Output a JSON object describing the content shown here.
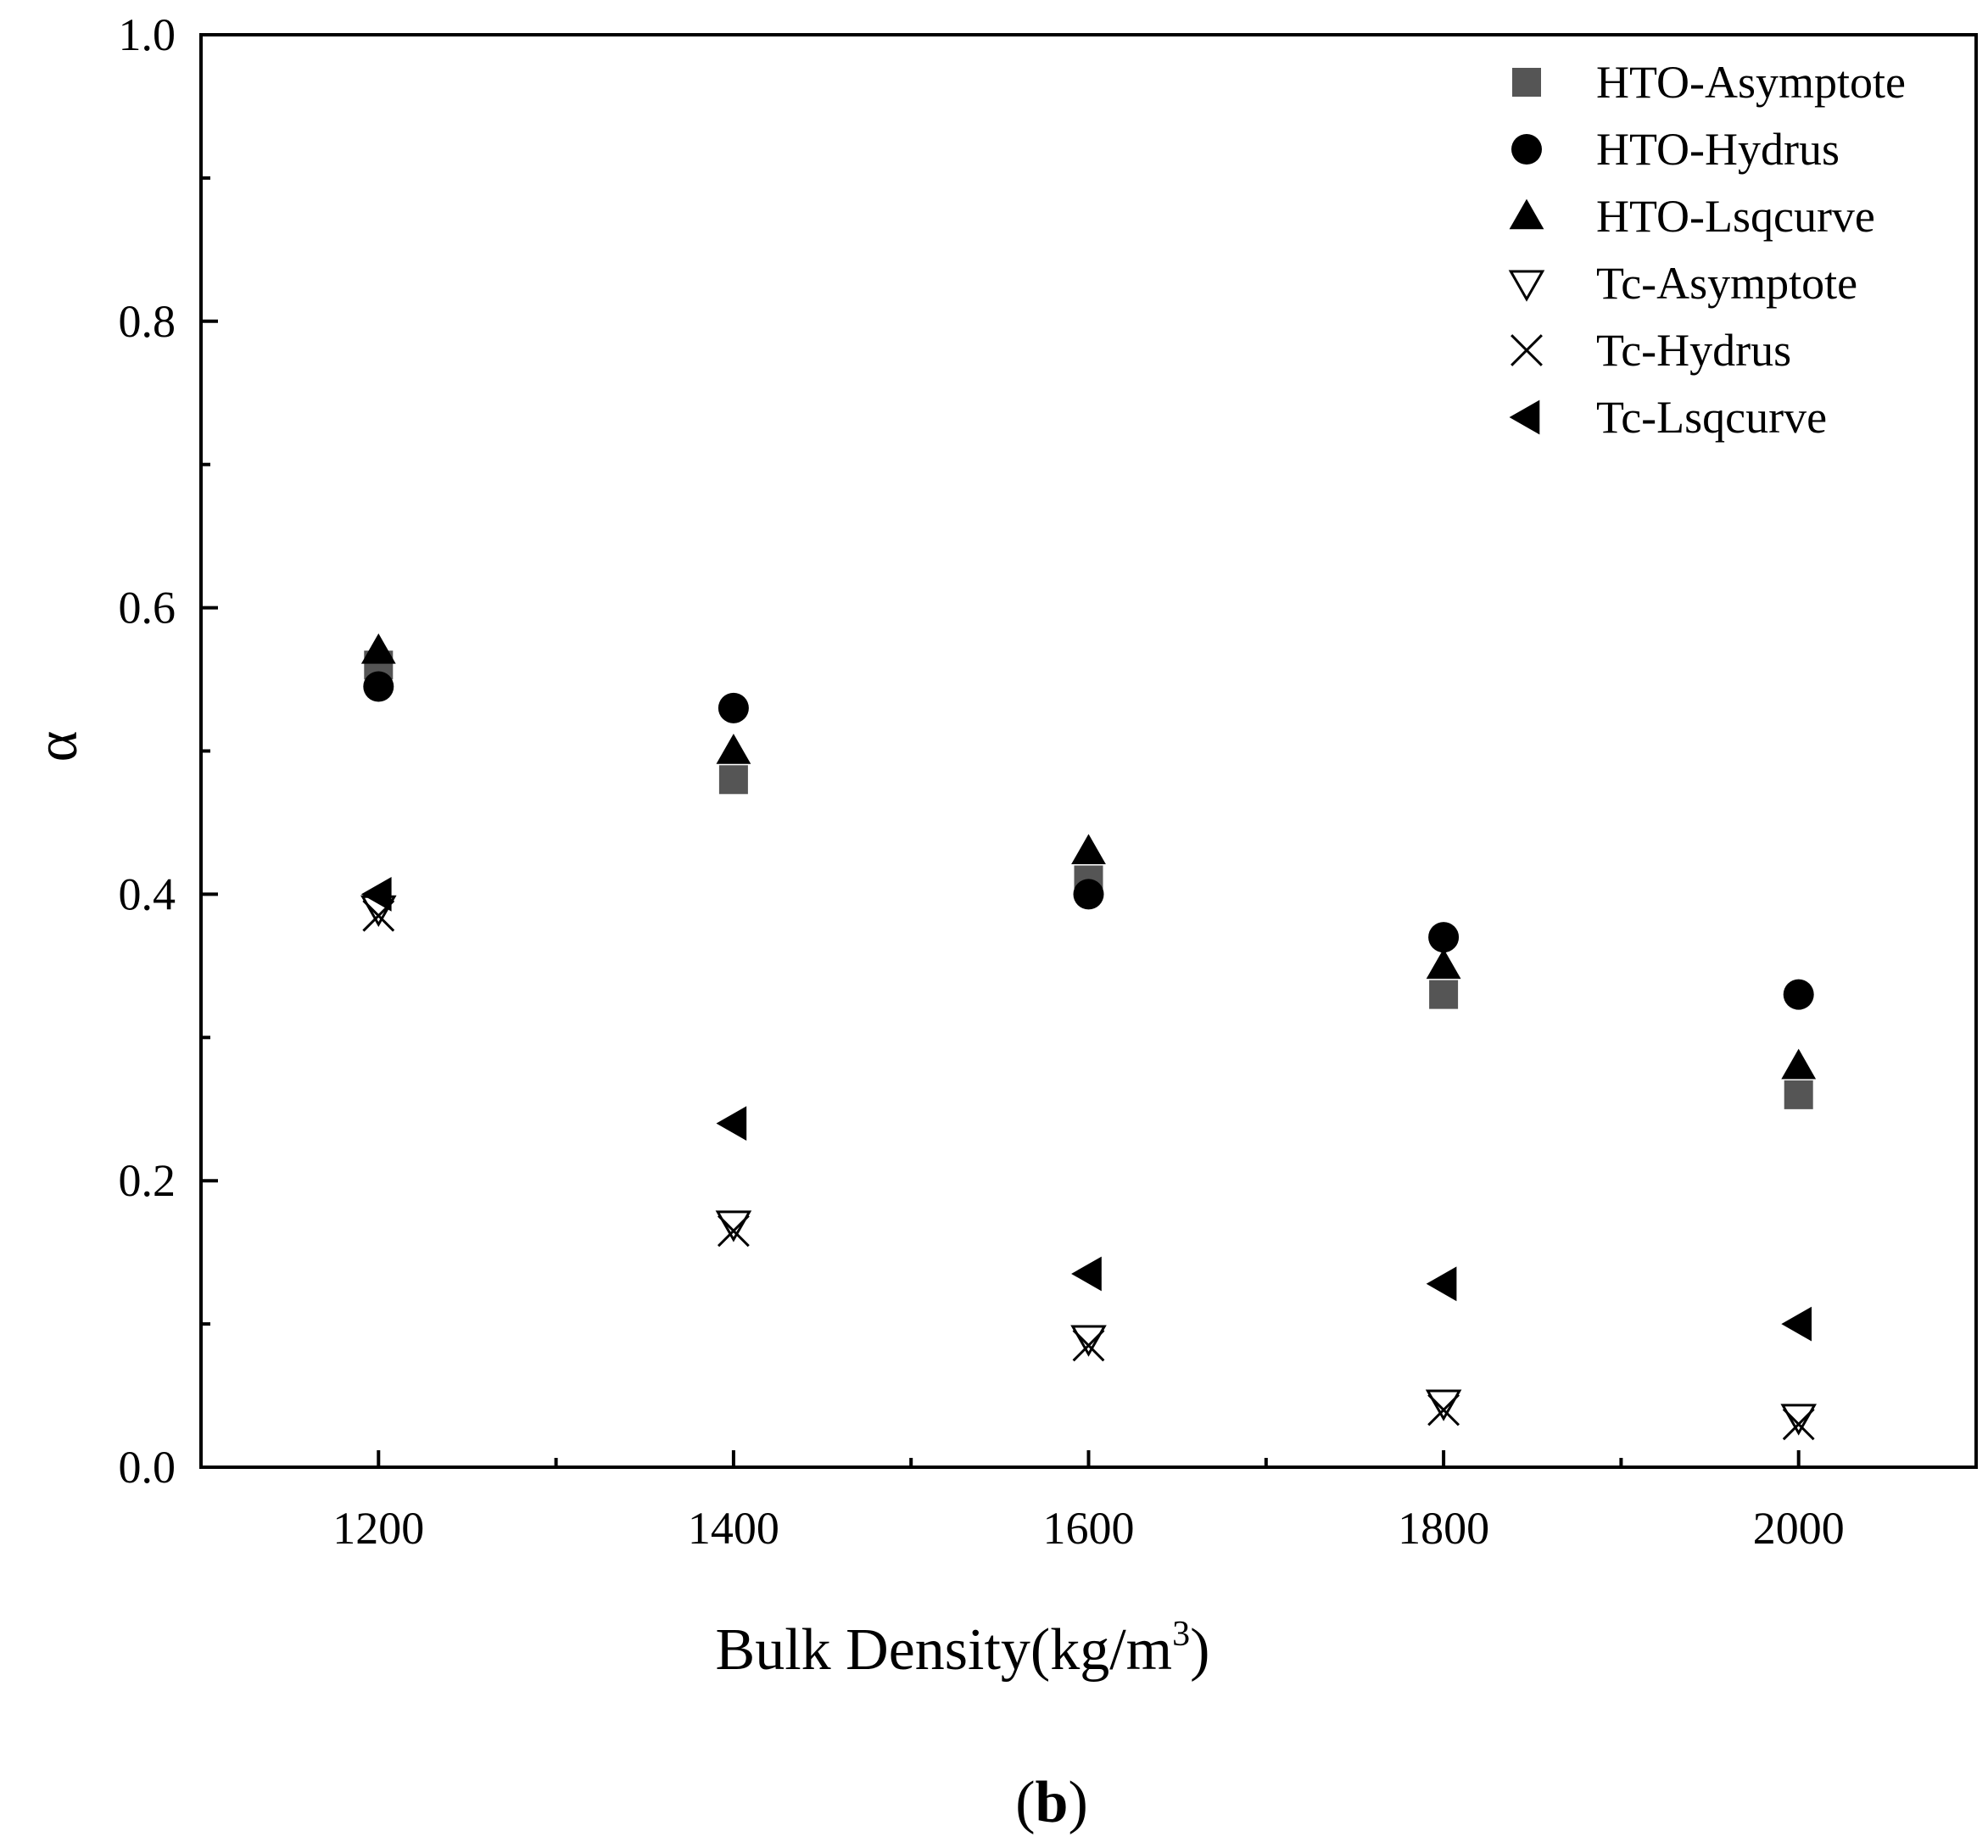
{
  "chart_data": {
    "type": "scatter",
    "xlabel": "Bulk Density(kg/m",
    "xlabel_sup": "3",
    "xlabel_close": ")",
    "ylabel": "α",
    "panel_label": "b",
    "xlim": [
      1100,
      2100
    ],
    "ylim": [
      0.0,
      1.0
    ],
    "x_ticks": [
      1200,
      1400,
      1600,
      1800,
      2000
    ],
    "y_ticks": [
      "0.0",
      "0.2",
      "0.4",
      "0.6",
      "0.8",
      "1.0"
    ],
    "legend_position": "top-right",
    "grid": false,
    "series": [
      {
        "name": "HTO-Asymptote",
        "marker": "square",
        "color": "#555555",
        "points": [
          [
            1200,
            0.56
          ],
          [
            1400,
            0.48
          ],
          [
            1600,
            0.41
          ],
          [
            1800,
            0.33
          ],
          [
            2000,
            0.26
          ]
        ]
      },
      {
        "name": "HTO-Hydrus",
        "marker": "circle",
        "color": "#000000",
        "points": [
          [
            1200,
            0.545
          ],
          [
            1400,
            0.53
          ],
          [
            1600,
            0.4
          ],
          [
            1800,
            0.37
          ],
          [
            2000,
            0.33
          ]
        ]
      },
      {
        "name": "HTO-Lsqcurve",
        "marker": "triangle-up",
        "color": "#000000",
        "points": [
          [
            1200,
            0.57
          ],
          [
            1400,
            0.5
          ],
          [
            1600,
            0.43
          ],
          [
            1800,
            0.35
          ],
          [
            2000,
            0.28
          ]
        ]
      },
      {
        "name": "Tc-Asymptote",
        "marker": "triangle-down-open",
        "color": "#000000",
        "points": [
          [
            1200,
            0.39
          ],
          [
            1400,
            0.17
          ],
          [
            1600,
            0.09
          ],
          [
            1800,
            0.045
          ],
          [
            2000,
            0.035
          ]
        ]
      },
      {
        "name": "Tc-Hydrus",
        "marker": "x",
        "color": "#000000",
        "points": [
          [
            1200,
            0.385
          ],
          [
            1400,
            0.165
          ],
          [
            1600,
            0.085
          ],
          [
            1800,
            0.04
          ],
          [
            2000,
            0.03
          ]
        ]
      },
      {
        "name": "Tc-Lsqcurve",
        "marker": "triangle-left",
        "color": "#000000",
        "points": [
          [
            1200,
            0.4
          ],
          [
            1400,
            0.24
          ],
          [
            1600,
            0.135
          ],
          [
            1800,
            0.128
          ],
          [
            2000,
            0.1
          ]
        ]
      }
    ]
  }
}
